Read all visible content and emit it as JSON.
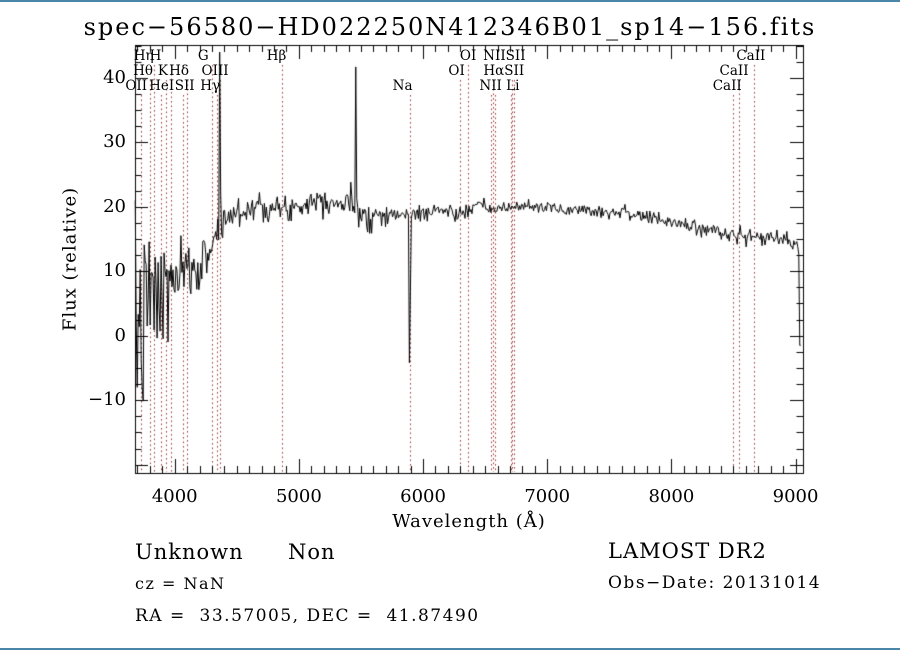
{
  "title": "spec−56580−HD022250N412346B01_sp14−156.fits",
  "footer": {
    "class": "Unknown",
    "subclass": "Non",
    "survey": "LAMOST DR2",
    "cz": "cz = NaN",
    "obs_date": "Obs−Date: 20131014",
    "coordinates": "RA =  33.57005, DEC =  41.87490"
  },
  "colors": {
    "trace": "#000000",
    "frame": "#000000",
    "spectral_marker": "#9e3a38",
    "page_edge": "#4a86a8"
  },
  "chart_data": {
    "type": "line",
    "title": "spec−56580−HD022250N412346B01_sp14−156.fits",
    "xlabel": "Wavelength (Å)",
    "ylabel": "Flux (relative)",
    "xlim": [
      3680,
      9060
    ],
    "ylim": [
      -21.3,
      45.1
    ],
    "xtick_values": [
      4000,
      5000,
      6000,
      7000,
      8000,
      9000
    ],
    "xtick_labels": [
      "4000",
      "5000",
      "6000",
      "7000",
      "8000",
      "9000"
    ],
    "ytick_values": [
      -10,
      0,
      10,
      20,
      30,
      40
    ],
    "ytick_labels": [
      "−10",
      "0",
      "10",
      "20",
      "30",
      "40"
    ],
    "x_minor_step": 100,
    "y_minor_step": 2.5,
    "grid": false,
    "legend": false,
    "sample_step": 8,
    "noise_seed": 7,
    "spectral_line_markers": [
      {
        "wavelength": 3727,
        "row": 2
      },
      {
        "wavelength": 3798,
        "row": 1
      },
      {
        "wavelength": 3835,
        "row": 0
      },
      {
        "wavelength": 3889,
        "row": 2
      },
      {
        "wavelength": 3933,
        "row": 1
      },
      {
        "wavelength": 3968,
        "row": 0
      },
      {
        "wavelength": 4068,
        "row": 2
      },
      {
        "wavelength": 4101,
        "row": 1
      },
      {
        "wavelength": 4304,
        "row": 0
      },
      {
        "wavelength": 4340,
        "row": 2
      },
      {
        "wavelength": 4363,
        "row": 1
      },
      {
        "wavelength": 4861,
        "row": 0
      },
      {
        "wavelength": 5893,
        "row": 2
      },
      {
        "wavelength": 6300,
        "row": 1
      },
      {
        "wavelength": 6363,
        "row": 0
      },
      {
        "wavelength": 6548,
        "row": 2
      },
      {
        "wavelength": 6563,
        "row": 1
      },
      {
        "wavelength": 6583,
        "row": 2
      },
      {
        "wavelength": 6708,
        "row": 2
      },
      {
        "wavelength": 6716,
        "row": 1
      },
      {
        "wavelength": 6731,
        "row": 1
      },
      {
        "wavelength": 8498,
        "row": 2
      },
      {
        "wavelength": 8542,
        "row": 1
      },
      {
        "wavelength": 8662,
        "row": 0
      }
    ],
    "spectral_line_labels": [
      {
        "text": "Hη",
        "row": 0,
        "wl": 3750
      },
      {
        "text": "H",
        "row": 0,
        "wl": 3845
      },
      {
        "text": "G",
        "row": 0,
        "wl": 4230
      },
      {
        "text": "Hβ",
        "row": 0,
        "wl": 4820
      },
      {
        "text": "OI",
        "row": 0,
        "wl": 6363
      },
      {
        "text": "NIISII",
        "row": 0,
        "wl": 6655
      },
      {
        "text": "CaII",
        "row": 0,
        "wl": 8640
      },
      {
        "text": "Hθ",
        "row": 1,
        "wl": 3745
      },
      {
        "text": "K",
        "row": 1,
        "wl": 3905
      },
      {
        "text": "Hδ",
        "row": 1,
        "wl": 4035
      },
      {
        "text": "OIII",
        "row": 1,
        "wl": 4325
      },
      {
        "text": "OI",
        "row": 1,
        "wl": 6270
      },
      {
        "text": "HαSII",
        "row": 1,
        "wl": 6650
      },
      {
        "text": "CaII",
        "row": 1,
        "wl": 8505
      },
      {
        "text": "OII",
        "row": 2,
        "wl": 3690
      },
      {
        "text": "HeI",
        "row": 2,
        "wl": 3895
      },
      {
        "text": "SII",
        "row": 2,
        "wl": 4080
      },
      {
        "text": "Hγ",
        "row": 2,
        "wl": 4285
      },
      {
        "text": "Na",
        "row": 2,
        "wl": 5835
      },
      {
        "text": "NII Li",
        "row": 2,
        "wl": 6615
      },
      {
        "text": "CaII",
        "row": 2,
        "wl": 8450
      }
    ],
    "continuum_points": [
      [
        3680,
        2
      ],
      [
        3720,
        3
      ],
      [
        3760,
        4
      ],
      [
        3800,
        6
      ],
      [
        3840,
        7
      ],
      [
        3880,
        6
      ],
      [
        3920,
        7
      ],
      [
        3960,
        8
      ],
      [
        4000,
        9
      ],
      [
        4060,
        9.5
      ],
      [
        4120,
        10
      ],
      [
        4180,
        10.5
      ],
      [
        4240,
        12
      ],
      [
        4300,
        14.5
      ],
      [
        4360,
        17
      ],
      [
        4420,
        18.5
      ],
      [
        4480,
        19
      ],
      [
        4550,
        19.5
      ],
      [
        4620,
        20
      ],
      [
        4700,
        20.5
      ],
      [
        4780,
        20
      ],
      [
        4860,
        19.5
      ],
      [
        4940,
        20
      ],
      [
        5020,
        20.5
      ],
      [
        5100,
        21
      ],
      [
        5180,
        21.5
      ],
      [
        5260,
        21
      ],
      [
        5340,
        20.5
      ],
      [
        5420,
        20.5
      ],
      [
        5500,
        19.5
      ],
      [
        5560,
        18.5
      ],
      [
        5620,
        18.8
      ],
      [
        5700,
        19.2
      ],
      [
        5780,
        18.6
      ],
      [
        5860,
        18.8
      ],
      [
        5940,
        18.8
      ],
      [
        6020,
        19.3
      ],
      [
        6100,
        19.5
      ],
      [
        6200,
        19.4
      ],
      [
        6280,
        18.9
      ],
      [
        6360,
        19.3
      ],
      [
        6440,
        20.3
      ],
      [
        6520,
        19.8
      ],
      [
        6600,
        19.6
      ],
      [
        6700,
        19.9
      ],
      [
        6800,
        20.3
      ],
      [
        6900,
        20
      ],
      [
        7000,
        20
      ],
      [
        7100,
        19.6
      ],
      [
        7200,
        19.5
      ],
      [
        7300,
        19.8
      ],
      [
        7400,
        19.4
      ],
      [
        7500,
        19.2
      ],
      [
        7600,
        19.4
      ],
      [
        7700,
        18.9
      ],
      [
        7800,
        18.4
      ],
      [
        7900,
        18
      ],
      [
        8000,
        17.6
      ],
      [
        8100,
        17.3
      ],
      [
        8200,
        17
      ],
      [
        8300,
        16.5
      ],
      [
        8400,
        16
      ],
      [
        8500,
        15.8
      ],
      [
        8600,
        15.4
      ],
      [
        8700,
        15.2
      ],
      [
        8800,
        15.4
      ],
      [
        8900,
        14.9
      ],
      [
        8980,
        14.4
      ],
      [
        9040,
        13.8
      ]
    ],
    "noise_envelope_points": [
      [
        3680,
        21
      ],
      [
        3700,
        20
      ],
      [
        3730,
        18
      ],
      [
        3760,
        15
      ],
      [
        3790,
        11
      ],
      [
        3820,
        9
      ],
      [
        3860,
        10
      ],
      [
        3900,
        11
      ],
      [
        3940,
        8
      ],
      [
        3980,
        6
      ],
      [
        4020,
        5
      ],
      [
        4080,
        4.5
      ],
      [
        4150,
        4.2
      ],
      [
        4250,
        3.6
      ],
      [
        4350,
        3.2
      ],
      [
        4450,
        3
      ],
      [
        4550,
        2.8
      ],
      [
        4650,
        2.4
      ],
      [
        4750,
        2.2
      ],
      [
        4850,
        2
      ],
      [
        4950,
        1.9
      ],
      [
        5050,
        1.8
      ],
      [
        5150,
        1.9
      ],
      [
        5250,
        2
      ],
      [
        5350,
        2.2
      ],
      [
        5420,
        2.4
      ],
      [
        5480,
        2.8
      ],
      [
        5540,
        2.6
      ],
      [
        5600,
        2
      ],
      [
        5700,
        1.6
      ],
      [
        5800,
        1.5
      ],
      [
        5900,
        1.5
      ],
      [
        6000,
        1.4
      ],
      [
        6150,
        1.2
      ],
      [
        6300,
        1.1
      ],
      [
        6500,
        1
      ],
      [
        6700,
        1
      ],
      [
        6900,
        0.9
      ],
      [
        7100,
        0.9
      ],
      [
        7300,
        1
      ],
      [
        7500,
        1
      ],
      [
        7700,
        1.1
      ],
      [
        7900,
        1.1
      ],
      [
        8100,
        1.2
      ],
      [
        8300,
        1.3
      ],
      [
        8500,
        1.3
      ],
      [
        8700,
        1.3
      ],
      [
        8900,
        1.2
      ],
      [
        9040,
        1.2
      ]
    ],
    "features": [
      {
        "type": "spike",
        "wavelength": 4358,
        "peak": 44
      },
      {
        "type": "spike",
        "wavelength": 5461,
        "peak": 41.7
      },
      {
        "type": "dip",
        "wavelength": 5893,
        "depth": -4.2
      },
      {
        "type": "edge_drop",
        "wavelength": 9036,
        "depth": -1.5
      }
    ]
  }
}
